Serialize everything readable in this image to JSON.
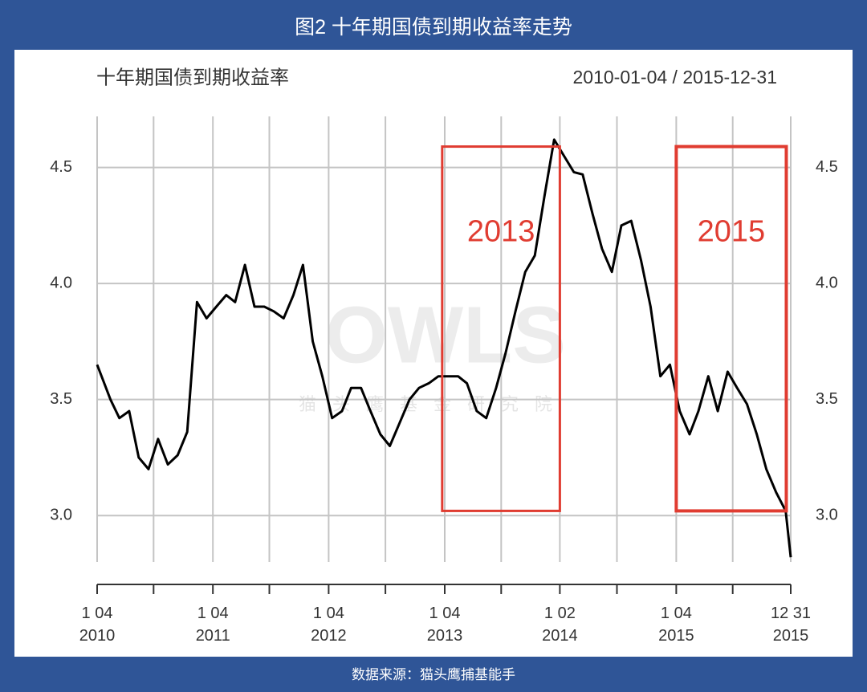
{
  "header": {
    "title": "图2 十年期国债到期收益率走势"
  },
  "footer": {
    "source": "数据来源：猫头鹰捕基能手"
  },
  "chart_data": {
    "type": "line",
    "title": "十年期国债到期收益率",
    "subtitle": "2010-01-04 / 2015-12-31",
    "watermark": [
      "OWLS",
      "猫头鹰基金研究院"
    ],
    "x": [
      "2010-01-04",
      "2010-02-15",
      "2010-03-15",
      "2010-04-15",
      "2010-05-15",
      "2010-06-15",
      "2010-07-15",
      "2010-08-15",
      "2010-09-15",
      "2010-10-15",
      "2010-11-15",
      "2010-12-15",
      "2011-01-15",
      "2011-02-15",
      "2011-03-15",
      "2011-04-15",
      "2011-05-15",
      "2011-06-15",
      "2011-07-15",
      "2011-08-15",
      "2011-09-15",
      "2011-10-15",
      "2011-11-15",
      "2011-12-15",
      "2012-01-15",
      "2012-02-15",
      "2012-03-15",
      "2012-04-15",
      "2012-05-15",
      "2012-06-15",
      "2012-07-15",
      "2012-08-15",
      "2012-09-15",
      "2012-10-15",
      "2012-11-15",
      "2012-12-15",
      "2013-01-15",
      "2013-02-15",
      "2013-03-15",
      "2013-04-15",
      "2013-05-15",
      "2013-06-15",
      "2013-07-15",
      "2013-08-15",
      "2013-09-15",
      "2013-10-15",
      "2013-11-15",
      "2013-12-15",
      "2014-01-15",
      "2014-02-15",
      "2014-03-15",
      "2014-04-15",
      "2014-05-15",
      "2014-06-15",
      "2014-07-15",
      "2014-08-15",
      "2014-09-15",
      "2014-10-15",
      "2014-11-15",
      "2014-12-15",
      "2015-01-15",
      "2015-02-15",
      "2015-03-15",
      "2015-04-15",
      "2015-05-15",
      "2015-06-15",
      "2015-07-15",
      "2015-08-15",
      "2015-09-15",
      "2015-10-15",
      "2015-11-15",
      "2015-12-15",
      "2015-12-31"
    ],
    "series": [
      {
        "name": "十年期国债到期收益率",
        "color": "#000000",
        "values": [
          3.65,
          3.5,
          3.42,
          3.45,
          3.25,
          3.2,
          3.33,
          3.22,
          3.26,
          3.36,
          3.92,
          3.85,
          3.9,
          3.95,
          3.92,
          4.08,
          3.9,
          3.9,
          3.88,
          3.85,
          3.95,
          4.08,
          3.75,
          3.6,
          3.42,
          3.45,
          3.55,
          3.55,
          3.45,
          3.35,
          3.3,
          3.4,
          3.5,
          3.55,
          3.57,
          3.6,
          3.6,
          3.6,
          3.57,
          3.45,
          3.42,
          3.55,
          3.7,
          3.88,
          4.05,
          4.12,
          4.38,
          4.62,
          4.55,
          4.48,
          4.47,
          4.3,
          4.15,
          4.05,
          4.25,
          4.27,
          4.1,
          3.9,
          3.6,
          3.65,
          3.45,
          3.35,
          3.45,
          3.6,
          3.45,
          3.62,
          3.55,
          3.48,
          3.35,
          3.2,
          3.1,
          3.02,
          2.82
        ]
      }
    ],
    "xlim": [
      "2010-01-04",
      "2015-12-31"
    ],
    "xticks": [
      {
        "value": "2010-01-04",
        "label": "1 04\n2010"
      },
      {
        "value": "2011-01-04",
        "label": "1 04\n2011"
      },
      {
        "value": "2012-01-04",
        "label": "1 04\n2012"
      },
      {
        "value": "2013-01-04",
        "label": "1 04\n2013"
      },
      {
        "value": "2014-01-02",
        "label": "1 02\n2014"
      },
      {
        "value": "2015-01-04",
        "label": "1 04\n2015"
      },
      {
        "value": "2015-12-31",
        "label": "12 31\n2015"
      }
    ],
    "x_minor_ticks": [
      "2010-07-01",
      "2011-07-01",
      "2012-07-01",
      "2013-07-01",
      "2014-07-01",
      "2015-07-01"
    ],
    "ylim": [
      2.8,
      4.72
    ],
    "yticks": [
      {
        "value": 3.0,
        "label": "3.0"
      },
      {
        "value": 3.5,
        "label": "3.5"
      },
      {
        "value": 4.0,
        "label": "4.0"
      },
      {
        "value": 4.5,
        "label": "4.5"
      }
    ],
    "grid": true,
    "annotations": [
      {
        "text": "2013",
        "x": [
          "2012-12-27",
          "2014-01-02"
        ],
        "y": [
          3.02,
          4.59
        ],
        "color": "#e03c31"
      },
      {
        "text": "2015",
        "x": [
          "2015-01-04",
          "2015-12-17"
        ],
        "y": [
          3.02,
          4.59
        ],
        "color": "#e03c31"
      }
    ]
  }
}
